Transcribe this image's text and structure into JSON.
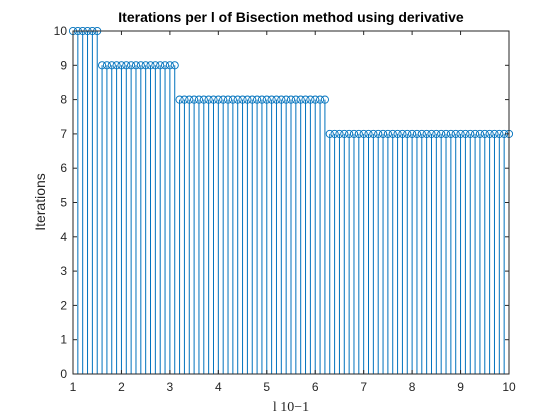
{
  "chart_data": {
    "type": "stem",
    "title": "Iterations per l of Bisection method using derivative",
    "xlabel": "l 10−1",
    "ylabel": "Iterations",
    "xlim": [
      1,
      10
    ],
    "ylim": [
      0,
      10
    ],
    "xticks": [
      "1",
      "2",
      "3",
      "4",
      "5",
      "6",
      "7",
      "8",
      "9",
      "10"
    ],
    "yticks": [
      "0",
      "1",
      "2",
      "3",
      "4",
      "5",
      "6",
      "7",
      "8",
      "9",
      "10"
    ],
    "grid": false,
    "marker": "circle",
    "color": "#0072BD",
    "x_start": 1,
    "x_step": 0.1,
    "values": [
      10,
      10,
      10,
      10,
      10,
      10,
      9,
      9,
      9,
      9,
      9,
      9,
      9,
      9,
      9,
      9,
      9,
      9,
      9,
      9,
      9,
      9,
      8,
      8,
      8,
      8,
      8,
      8,
      8,
      8,
      8,
      8,
      8,
      8,
      8,
      8,
      8,
      8,
      8,
      8,
      8,
      8,
      8,
      8,
      8,
      8,
      8,
      8,
      8,
      8,
      8,
      8,
      8,
      7,
      7,
      7,
      7,
      7,
      7,
      7,
      7,
      7,
      7,
      7,
      7,
      7,
      7,
      7,
      7,
      7,
      7,
      7,
      7,
      7,
      7,
      7,
      7,
      7,
      7,
      7,
      7,
      7,
      7,
      7,
      7,
      7,
      7,
      7,
      7,
      7,
      7
    ]
  }
}
